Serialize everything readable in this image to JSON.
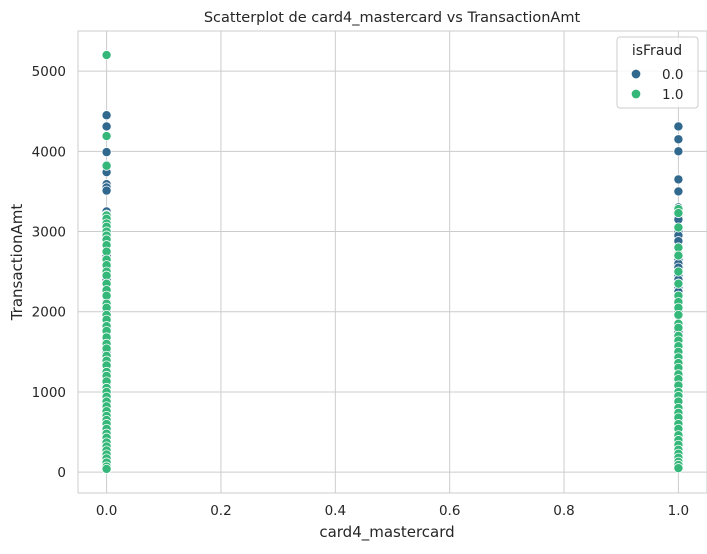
{
  "chart_data": {
    "type": "scatter",
    "title": "Scatterplot de card4_mastercard vs TransactionAmt",
    "xlabel": "card4_mastercard",
    "ylabel": "TransactionAmt",
    "xlim": [
      -0.05,
      1.05
    ],
    "ylim": [
      -260,
      5500
    ],
    "xticks": [
      0.0,
      0.2,
      0.4,
      0.6,
      0.8,
      1.0
    ],
    "xtick_labels": [
      "0.0",
      "0.2",
      "0.4",
      "0.6",
      "0.8",
      "1.0"
    ],
    "yticks": [
      0,
      1000,
      2000,
      3000,
      4000,
      5000
    ],
    "ytick_labels": [
      "0",
      "1000",
      "2000",
      "3000",
      "4000",
      "5000"
    ],
    "grid": true,
    "legend": {
      "title": "isFraud",
      "placement": "top-right",
      "entries": [
        "0.0",
        "1.0"
      ]
    },
    "colors": {
      "0.0": "#31688e",
      "1.0": "#35b779"
    },
    "series": [
      {
        "name": "0.0",
        "color": "#31688e",
        "points": [
          [
            0,
            4450
          ],
          [
            0,
            4310
          ],
          [
            0,
            3990
          ],
          [
            0,
            3830
          ],
          [
            0,
            3740
          ],
          [
            0,
            3590
          ],
          [
            0,
            3550
          ],
          [
            0,
            3510
          ],
          [
            0,
            3250
          ],
          [
            0,
            3210
          ],
          [
            0,
            3050
          ],
          [
            0,
            2950
          ],
          [
            0,
            2880
          ],
          [
            0,
            2760
          ],
          [
            0,
            2700
          ],
          [
            0,
            2550
          ],
          [
            0,
            2400
          ],
          [
            0,
            2250
          ],
          [
            0,
            2120
          ],
          [
            0,
            2000
          ],
          [
            0,
            1900
          ],
          [
            0,
            1780
          ],
          [
            0,
            1650
          ],
          [
            0,
            1500
          ],
          [
            0,
            1380
          ],
          [
            0,
            1250
          ],
          [
            0,
            1100
          ],
          [
            0,
            950
          ],
          [
            0,
            800
          ],
          [
            0,
            650
          ],
          [
            0,
            500
          ],
          [
            0,
            350
          ],
          [
            0,
            200
          ],
          [
            0,
            80
          ],
          [
            1,
            4310
          ],
          [
            1,
            4150
          ],
          [
            1,
            4000
          ],
          [
            1,
            3650
          ],
          [
            1,
            3500
          ],
          [
            1,
            3300
          ],
          [
            1,
            3200
          ],
          [
            1,
            3150
          ],
          [
            1,
            3000
          ],
          [
            1,
            2950
          ],
          [
            1,
            2880
          ],
          [
            1,
            2800
          ],
          [
            1,
            2720
          ],
          [
            1,
            2650
          ],
          [
            1,
            2600
          ],
          [
            1,
            2550
          ],
          [
            1,
            2500
          ],
          [
            1,
            2450
          ],
          [
            1,
            2400
          ],
          [
            1,
            2350
          ],
          [
            1,
            2300
          ],
          [
            1,
            2250
          ],
          [
            1,
            2200
          ],
          [
            1,
            2150
          ],
          [
            1,
            2100
          ],
          [
            1,
            2000
          ],
          [
            1,
            1950
          ],
          [
            1,
            1850
          ],
          [
            1,
            1750
          ],
          [
            1,
            1650
          ],
          [
            1,
            1550
          ],
          [
            1,
            1400
          ],
          [
            1,
            1300
          ],
          [
            1,
            1200
          ],
          [
            1,
            1100
          ],
          [
            1,
            1000
          ],
          [
            1,
            900
          ],
          [
            1,
            800
          ],
          [
            1,
            650
          ],
          [
            1,
            550
          ],
          [
            1,
            400
          ],
          [
            1,
            300
          ],
          [
            1,
            150
          ]
        ]
      },
      {
        "name": "1.0",
        "color": "#35b779",
        "points": [
          [
            0,
            5200
          ],
          [
            0,
            4190
          ],
          [
            0,
            3820
          ],
          [
            0,
            3200
          ],
          [
            0,
            3160
          ],
          [
            0,
            3100
          ],
          [
            0,
            3060
          ],
          [
            0,
            3000
          ],
          [
            0,
            2950
          ],
          [
            0,
            2900
          ],
          [
            0,
            2830
          ],
          [
            0,
            2750
          ],
          [
            0,
            2650
          ],
          [
            0,
            2580
          ],
          [
            0,
            2500
          ],
          [
            0,
            2450
          ],
          [
            0,
            2350
          ],
          [
            0,
            2270
          ],
          [
            0,
            2200
          ],
          [
            0,
            2100
          ],
          [
            0,
            2050
          ],
          [
            0,
            1960
          ],
          [
            0,
            1900
          ],
          [
            0,
            1820
          ],
          [
            0,
            1760
          ],
          [
            0,
            1680
          ],
          [
            0,
            1600
          ],
          [
            0,
            1540
          ],
          [
            0,
            1450
          ],
          [
            0,
            1390
          ],
          [
            0,
            1330
          ],
          [
            0,
            1250
          ],
          [
            0,
            1200
          ],
          [
            0,
            1130
          ],
          [
            0,
            1050
          ],
          [
            0,
            1000
          ],
          [
            0,
            940
          ],
          [
            0,
            880
          ],
          [
            0,
            820
          ],
          [
            0,
            760
          ],
          [
            0,
            700
          ],
          [
            0,
            650
          ],
          [
            0,
            600
          ],
          [
            0,
            540
          ],
          [
            0,
            480
          ],
          [
            0,
            430
          ],
          [
            0,
            370
          ],
          [
            0,
            320
          ],
          [
            0,
            270
          ],
          [
            0,
            220
          ],
          [
            0,
            170
          ],
          [
            0,
            120
          ],
          [
            0,
            70
          ],
          [
            0,
            40
          ],
          [
            1,
            3280
          ],
          [
            1,
            3230
          ],
          [
            1,
            3050
          ],
          [
            1,
            2800
          ],
          [
            1,
            2700
          ],
          [
            1,
            2500
          ],
          [
            1,
            2350
          ],
          [
            1,
            2200
          ],
          [
            1,
            2120
          ],
          [
            1,
            2050
          ],
          [
            1,
            1960
          ],
          [
            1,
            1850
          ],
          [
            1,
            1800
          ],
          [
            1,
            1700
          ],
          [
            1,
            1640
          ],
          [
            1,
            1570
          ],
          [
            1,
            1500
          ],
          [
            1,
            1430
          ],
          [
            1,
            1360
          ],
          [
            1,
            1300
          ],
          [
            1,
            1220
          ],
          [
            1,
            1160
          ],
          [
            1,
            1080
          ],
          [
            1,
            1000
          ],
          [
            1,
            950
          ],
          [
            1,
            880
          ],
          [
            1,
            800
          ],
          [
            1,
            740
          ],
          [
            1,
            680
          ],
          [
            1,
            600
          ],
          [
            1,
            540
          ],
          [
            1,
            460
          ],
          [
            1,
            400
          ],
          [
            1,
            340
          ],
          [
            1,
            280
          ],
          [
            1,
            230
          ],
          [
            1,
            180
          ],
          [
            1,
            130
          ],
          [
            1,
            90
          ],
          [
            1,
            50
          ]
        ]
      }
    ]
  }
}
